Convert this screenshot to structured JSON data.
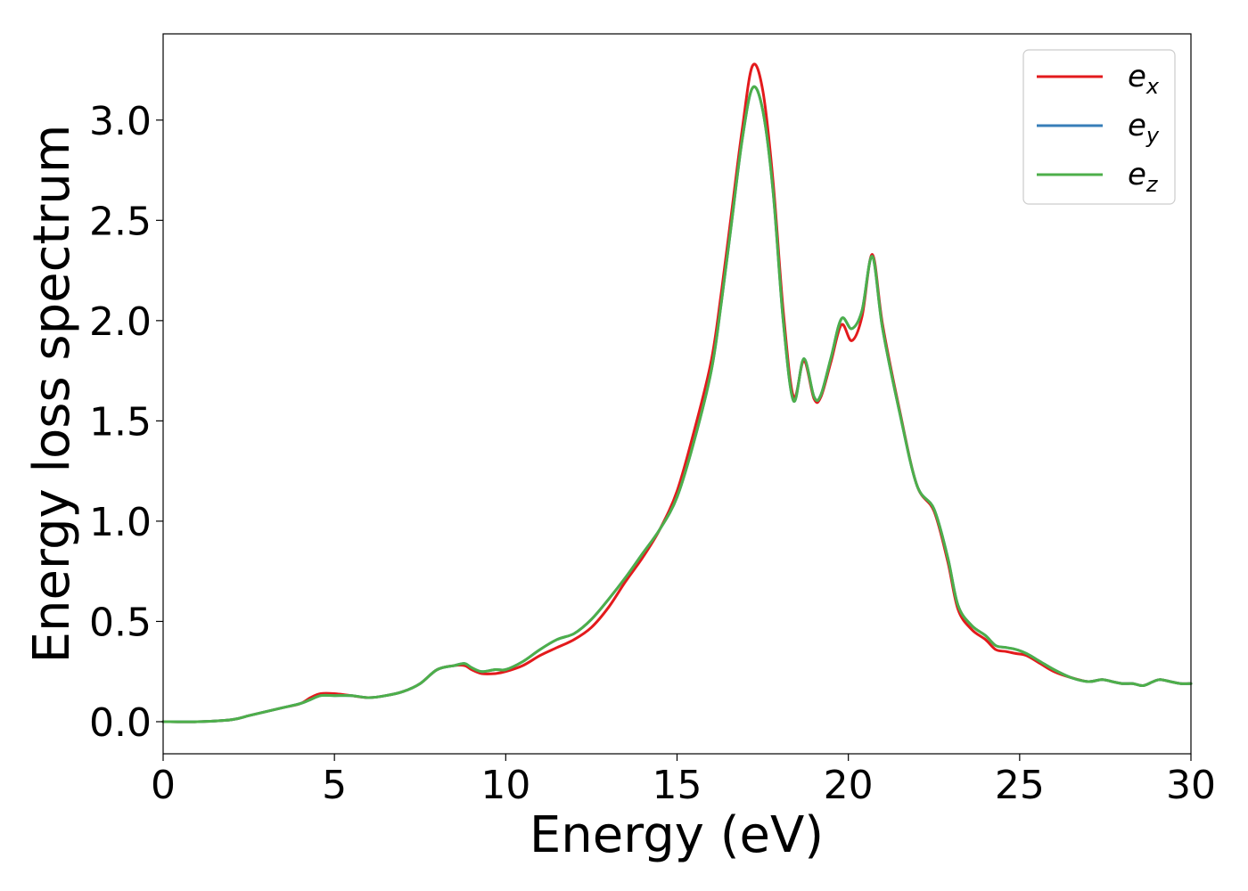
{
  "chart_data": {
    "type": "line",
    "title": "",
    "xlabel": "Energy (eV)",
    "ylabel": "Energy loss spectrum",
    "xlim": [
      0,
      30
    ],
    "ylim": [
      -0.16,
      3.43
    ],
    "xticks": [
      "0",
      "5",
      "10",
      "15",
      "20",
      "25",
      "30"
    ],
    "xtick_values": [
      0,
      5,
      10,
      15,
      20,
      25,
      30
    ],
    "yticks": [
      "0.0",
      "0.5",
      "1.0",
      "1.5",
      "2.0",
      "2.5",
      "3.0"
    ],
    "ytick_values": [
      0,
      0.5,
      1.0,
      1.5,
      2.0,
      2.5,
      3.0
    ],
    "grid": false,
    "legend": "top-right",
    "series": [
      {
        "name": "e_x",
        "label_base": "e",
        "label_sub": "x",
        "color": "#e31a1c",
        "x": [
          0,
          1,
          2,
          2.5,
          3,
          3.5,
          4,
          4.3,
          4.6,
          5,
          5.5,
          6,
          6.5,
          7,
          7.5,
          8,
          8.5,
          8.8,
          9,
          9.3,
          9.7,
          10,
          10.5,
          11,
          11.5,
          12,
          12.5,
          13,
          13.5,
          14,
          14.5,
          15,
          15.5,
          16,
          16.3,
          16.6,
          16.9,
          17.2,
          17.5,
          17.8,
          18.1,
          18.4,
          18.7,
          19.0,
          19.2,
          19.5,
          19.8,
          20.1,
          20.4,
          20.7,
          21.0,
          21.5,
          22,
          22.5,
          22.9,
          23.2,
          23.6,
          24,
          24.3,
          24.6,
          24.9,
          25.2,
          25.6,
          26,
          26.5,
          27,
          27.4,
          27.7,
          28,
          28.3,
          28.6,
          28.9,
          29.1,
          29.4,
          29.7,
          30
        ],
        "y": [
          0,
          0,
          0.01,
          0.03,
          0.05,
          0.07,
          0.09,
          0.12,
          0.14,
          0.14,
          0.13,
          0.12,
          0.13,
          0.15,
          0.19,
          0.26,
          0.28,
          0.28,
          0.26,
          0.24,
          0.24,
          0.25,
          0.28,
          0.33,
          0.37,
          0.41,
          0.47,
          0.57,
          0.7,
          0.82,
          0.96,
          1.15,
          1.45,
          1.8,
          2.15,
          2.55,
          2.95,
          3.27,
          3.15,
          2.7,
          2.05,
          1.62,
          1.8,
          1.61,
          1.62,
          1.8,
          1.98,
          1.9,
          2.02,
          2.33,
          1.98,
          1.55,
          1.18,
          1.05,
          0.8,
          0.56,
          0.46,
          0.41,
          0.36,
          0.35,
          0.34,
          0.33,
          0.29,
          0.25,
          0.22,
          0.2,
          0.21,
          0.2,
          0.19,
          0.19,
          0.18,
          0.2,
          0.21,
          0.2,
          0.19,
          0.19
        ]
      },
      {
        "name": "e_y",
        "label_base": "e",
        "label_sub": "y",
        "color": "#377eb8",
        "x": [
          0,
          1,
          2,
          2.5,
          3,
          3.5,
          4,
          4.3,
          4.6,
          5,
          5.5,
          6,
          6.5,
          7,
          7.5,
          8,
          8.5,
          8.8,
          9,
          9.3,
          9.7,
          10,
          10.5,
          11,
          11.5,
          12,
          12.5,
          13,
          13.5,
          14,
          14.5,
          15,
          15.5,
          16,
          16.3,
          16.6,
          16.9,
          17.2,
          17.5,
          17.8,
          18.1,
          18.4,
          18.7,
          19.0,
          19.2,
          19.5,
          19.8,
          20.1,
          20.4,
          20.7,
          21.0,
          21.5,
          22,
          22.5,
          22.9,
          23.2,
          23.6,
          24,
          24.3,
          24.6,
          24.9,
          25.2,
          25.6,
          26,
          26.5,
          27,
          27.4,
          27.7,
          28,
          28.3,
          28.6,
          28.9,
          29.1,
          29.4,
          29.7,
          30
        ],
        "y": [
          0,
          0,
          0.01,
          0.03,
          0.05,
          0.07,
          0.09,
          0.11,
          0.13,
          0.13,
          0.13,
          0.12,
          0.13,
          0.15,
          0.19,
          0.26,
          0.28,
          0.29,
          0.27,
          0.25,
          0.26,
          0.26,
          0.3,
          0.36,
          0.41,
          0.44,
          0.51,
          0.61,
          0.72,
          0.84,
          0.96,
          1.12,
          1.4,
          1.75,
          2.1,
          2.5,
          2.9,
          3.16,
          3.05,
          2.65,
          2.0,
          1.6,
          1.81,
          1.62,
          1.63,
          1.82,
          2.01,
          1.96,
          2.05,
          2.32,
          1.96,
          1.54,
          1.18,
          1.06,
          0.82,
          0.58,
          0.48,
          0.43,
          0.38,
          0.37,
          0.36,
          0.34,
          0.3,
          0.26,
          0.22,
          0.2,
          0.21,
          0.2,
          0.19,
          0.19,
          0.18,
          0.2,
          0.21,
          0.2,
          0.19,
          0.19
        ]
      },
      {
        "name": "e_z",
        "label_base": "e",
        "label_sub": "z",
        "color": "#4daf4a",
        "x": [
          0,
          1,
          2,
          2.5,
          3,
          3.5,
          4,
          4.3,
          4.6,
          5,
          5.5,
          6,
          6.5,
          7,
          7.5,
          8,
          8.5,
          8.8,
          9,
          9.3,
          9.7,
          10,
          10.5,
          11,
          11.5,
          12,
          12.5,
          13,
          13.5,
          14,
          14.5,
          15,
          15.5,
          16,
          16.3,
          16.6,
          16.9,
          17.2,
          17.5,
          17.8,
          18.1,
          18.4,
          18.7,
          19.0,
          19.2,
          19.5,
          19.8,
          20.1,
          20.4,
          20.7,
          21.0,
          21.5,
          22,
          22.5,
          22.9,
          23.2,
          23.6,
          24,
          24.3,
          24.6,
          24.9,
          25.2,
          25.6,
          26,
          26.5,
          27,
          27.4,
          27.7,
          28,
          28.3,
          28.6,
          28.9,
          29.1,
          29.4,
          29.7,
          30
        ],
        "y": [
          0,
          0,
          0.01,
          0.03,
          0.05,
          0.07,
          0.09,
          0.11,
          0.13,
          0.13,
          0.13,
          0.12,
          0.13,
          0.15,
          0.19,
          0.26,
          0.28,
          0.29,
          0.27,
          0.25,
          0.26,
          0.26,
          0.3,
          0.36,
          0.41,
          0.44,
          0.51,
          0.61,
          0.72,
          0.84,
          0.96,
          1.12,
          1.4,
          1.75,
          2.1,
          2.5,
          2.9,
          3.16,
          3.05,
          2.65,
          2.0,
          1.6,
          1.81,
          1.62,
          1.63,
          1.82,
          2.01,
          1.96,
          2.05,
          2.32,
          1.96,
          1.54,
          1.18,
          1.06,
          0.82,
          0.58,
          0.48,
          0.43,
          0.38,
          0.37,
          0.36,
          0.34,
          0.3,
          0.26,
          0.22,
          0.2,
          0.21,
          0.2,
          0.19,
          0.19,
          0.18,
          0.2,
          0.21,
          0.2,
          0.19,
          0.19
        ]
      }
    ]
  }
}
